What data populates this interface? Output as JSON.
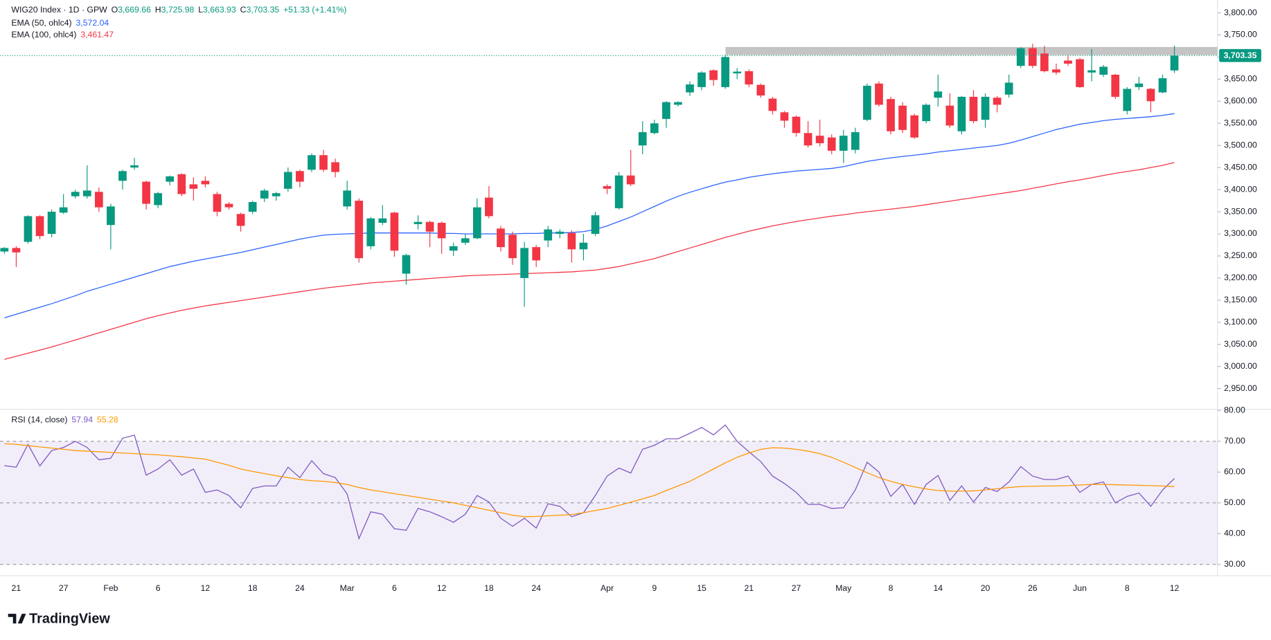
{
  "chart_data": [
    {
      "type": "candlestick",
      "title": "WIG20 Index · 1D · GPW",
      "ohlc_header": [
        {
          "label": "O",
          "value": "3,669.66"
        },
        {
          "label": "H",
          "value": "3,725.98"
        },
        {
          "label": "L",
          "value": "3,663.93"
        },
        {
          "label": "C",
          "value": "3,703.35"
        }
      ],
      "change": "+51.33 (+1.41%)",
      "close_label": "3,703.35",
      "up_color": "#089981",
      "down_color": "#f23645",
      "categories": [
        null,
        "21",
        null,
        null,
        null,
        "27",
        null,
        null,
        null,
        "Feb",
        null,
        null,
        null,
        "6",
        null,
        null,
        null,
        "12",
        null,
        null,
        null,
        "18",
        null,
        null,
        null,
        "24",
        null,
        null,
        null,
        "Mar",
        null,
        null,
        null,
        "6",
        null,
        null,
        null,
        "12",
        null,
        null,
        null,
        "18",
        null,
        null,
        null,
        "24",
        null,
        null,
        null,
        null,
        null,
        "Apr",
        null,
        null,
        null,
        "9",
        null,
        null,
        null,
        "15",
        null,
        null,
        null,
        "21",
        null,
        null,
        null,
        "27",
        null,
        null,
        null,
        "May",
        null,
        null,
        null,
        "8",
        null,
        null,
        null,
        "14",
        null,
        null,
        null,
        "20",
        null,
        null,
        null,
        "26",
        null,
        null,
        null,
        "Jun",
        null,
        null,
        null,
        "8",
        null,
        null,
        null,
        "12"
      ],
      "open": [
        3260,
        3268,
        3282,
        3340,
        3300,
        3348,
        3385,
        3385,
        3395,
        3320,
        3420,
        3450,
        3418,
        3365,
        3418,
        3435,
        3412,
        3420,
        3390,
        3368,
        3345,
        3350,
        3380,
        3385,
        3402,
        3442,
        3445,
        3478,
        3462,
        3362,
        3375,
        3272,
        3325,
        3348,
        3210,
        3322,
        3327,
        3325,
        3262,
        3280,
        3290,
        3382,
        3312,
        3298,
        3200,
        3270,
        3285,
        3300,
        3302,
        3265,
        3300,
        3408,
        3358,
        3432,
        3500,
        3528,
        3560,
        3592,
        3620,
        3632,
        3670,
        3632,
        3663,
        3668,
        3637,
        3606,
        3575,
        3565,
        3528,
        3522,
        3518,
        3488,
        3490,
        3558,
        3640,
        3605,
        3590,
        3568,
        3555,
        3608,
        3590,
        3532,
        3610,
        3558,
        3608,
        3615,
        3680,
        3720,
        3708,
        3672,
        3692,
        3695,
        3665,
        3660,
        3660,
        3578,
        3632,
        3628,
        3620,
        3669.66
      ],
      "high": [
        3270,
        3272,
        3342,
        3342,
        3355,
        3390,
        3400,
        3455,
        3405,
        3368,
        3445,
        3472,
        3420,
        3395,
        3432,
        3437,
        3428,
        3430,
        3395,
        3372,
        3348,
        3375,
        3402,
        3395,
        3450,
        3445,
        3482,
        3490,
        3470,
        3420,
        3380,
        3338,
        3365,
        3350,
        3255,
        3342,
        3330,
        3328,
        3280,
        3300,
        3380,
        3408,
        3318,
        3305,
        3282,
        3275,
        3318,
        3310,
        3308,
        3300,
        3350,
        3412,
        3440,
        3490,
        3555,
        3558,
        3600,
        3600,
        3645,
        3668,
        3672,
        3705,
        3675,
        3672,
        3640,
        3610,
        3578,
        3568,
        3555,
        3558,
        3525,
        3535,
        3540,
        3640,
        3645,
        3610,
        3598,
        3572,
        3595,
        3660,
        3618,
        3612,
        3625,
        3618,
        3612,
        3660,
        3722,
        3730,
        3725,
        3685,
        3705,
        3698,
        3718,
        3682,
        3662,
        3632,
        3655,
        3630,
        3660,
        3725.98
      ],
      "low": [
        3255,
        3225,
        3278,
        3288,
        3292,
        3345,
        3380,
        3380,
        3350,
        3265,
        3400,
        3445,
        3355,
        3358,
        3410,
        3385,
        3375,
        3405,
        3340,
        3355,
        3305,
        3345,
        3372,
        3375,
        3395,
        3405,
        3440,
        3440,
        3428,
        3355,
        3235,
        3265,
        3320,
        3248,
        3185,
        3310,
        3270,
        3255,
        3250,
        3275,
        3288,
        3335,
        3260,
        3230,
        3135,
        3225,
        3270,
        3290,
        3235,
        3240,
        3295,
        3390,
        3355,
        3408,
        3480,
        3525,
        3540,
        3588,
        3612,
        3625,
        3635,
        3628,
        3650,
        3632,
        3608,
        3570,
        3540,
        3520,
        3495,
        3498,
        3480,
        3460,
        3482,
        3555,
        3588,
        3525,
        3528,
        3515,
        3550,
        3588,
        3540,
        3525,
        3550,
        3540,
        3575,
        3608,
        3675,
        3675,
        3665,
        3660,
        3680,
        3630,
        3645,
        3655,
        3605,
        3570,
        3625,
        3575,
        3618,
        3663.93
      ],
      "close": [
        3268,
        3258,
        3340,
        3295,
        3350,
        3360,
        3395,
        3398,
        3360,
        3362,
        3442,
        3455,
        3368,
        3392,
        3430,
        3390,
        3402,
        3412,
        3350,
        3360,
        3318,
        3372,
        3398,
        3392,
        3440,
        3418,
        3478,
        3445,
        3440,
        3398,
        3245,
        3335,
        3335,
        3262,
        3252,
        3327,
        3305,
        3290,
        3272,
        3290,
        3360,
        3340,
        3270,
        3245,
        3268,
        3240,
        3310,
        3305,
        3265,
        3280,
        3342,
        3402,
        3432,
        3412,
        3530,
        3550,
        3598,
        3598,
        3638,
        3665,
        3648,
        3700,
        3667,
        3638,
        3613,
        3578,
        3556,
        3528,
        3500,
        3505,
        3488,
        3522,
        3530,
        3635,
        3592,
        3532,
        3535,
        3518,
        3592,
        3622,
        3545,
        3610,
        3555,
        3610,
        3592,
        3642,
        3720,
        3680,
        3668,
        3665,
        3685,
        3632,
        3670,
        3678,
        3610,
        3628,
        3640,
        3600,
        3652,
        3703.35
      ],
      "series": [
        {
          "name": "EMA (50, ohlc4)",
          "legend_value": "3,572.04",
          "color": "#2962ff",
          "values": [
            3110,
            3118,
            3126,
            3134,
            3142,
            3151,
            3160,
            3170,
            3178,
            3186,
            3194,
            3202,
            3210,
            3218,
            3226,
            3232,
            3238,
            3243,
            3248,
            3253,
            3258,
            3264,
            3270,
            3276,
            3282,
            3288,
            3293,
            3297,
            3299,
            3300,
            3301,
            3302,
            3302,
            3302,
            3302,
            3302,
            3302,
            3301,
            3301,
            3300,
            3300,
            3300,
            3300,
            3300,
            3301,
            3301,
            3302,
            3302,
            3303,
            3305,
            3310,
            3318,
            3328,
            3338,
            3350,
            3362,
            3374,
            3385,
            3394,
            3402,
            3410,
            3417,
            3422,
            3428,
            3432,
            3436,
            3439,
            3442,
            3444,
            3446,
            3448,
            3452,
            3458,
            3464,
            3468,
            3472,
            3475,
            3478,
            3481,
            3485,
            3488,
            3491,
            3494,
            3497,
            3500,
            3505,
            3512,
            3520,
            3528,
            3536,
            3542,
            3548,
            3552,
            3556,
            3559,
            3561,
            3563,
            3565,
            3568,
            3572.04
          ]
        },
        {
          "name": "EMA (100, ohlc4)",
          "legend_value": "3,461.47",
          "color": "#f23645",
          "values": [
            3016,
            3023,
            3030,
            3037,
            3044,
            3052,
            3060,
            3068,
            3076,
            3084,
            3092,
            3100,
            3108,
            3115,
            3121,
            3127,
            3132,
            3137,
            3141,
            3145,
            3149,
            3153,
            3157,
            3161,
            3165,
            3169,
            3173,
            3177,
            3180,
            3183,
            3186,
            3189,
            3191,
            3193,
            3195,
            3197,
            3199,
            3201,
            3203,
            3205,
            3206,
            3207,
            3208,
            3209,
            3210,
            3211,
            3212,
            3213,
            3214,
            3216,
            3218,
            3222,
            3226,
            3232,
            3238,
            3244,
            3252,
            3260,
            3268,
            3276,
            3284,
            3292,
            3299,
            3306,
            3312,
            3318,
            3323,
            3328,
            3332,
            3336,
            3340,
            3343,
            3347,
            3350,
            3353,
            3356,
            3359,
            3362,
            3366,
            3370,
            3374,
            3378,
            3382,
            3386,
            3390,
            3394,
            3398,
            3403,
            3408,
            3413,
            3418,
            3422,
            3427,
            3432,
            3437,
            3441,
            3445,
            3450,
            3455,
            3461.47
          ]
        }
      ],
      "ylim": [
        2904,
        3829
      ],
      "yticks": [
        {
          "value": 2950,
          "label": "2,950.00"
        },
        {
          "value": 3000,
          "label": "3,000.00"
        },
        {
          "value": 3050,
          "label": "3,050.00"
        },
        {
          "value": 3100,
          "label": "3,100.00"
        },
        {
          "value": 3150,
          "label": "3,150.00"
        },
        {
          "value": 3200,
          "label": "3,200.00"
        },
        {
          "value": 3250,
          "label": "3,250.00"
        },
        {
          "value": 3300,
          "label": "3,300.00"
        },
        {
          "value": 3350,
          "label": "3,350.00"
        },
        {
          "value": 3400,
          "label": "3,400.00"
        },
        {
          "value": 3450,
          "label": "3,450.00"
        },
        {
          "value": 3500,
          "label": "3,500.00"
        },
        {
          "value": 3550,
          "label": "3,550.00"
        },
        {
          "value": 3600,
          "label": "3,600.00"
        },
        {
          "value": 3650,
          "label": "3,650.00"
        },
        {
          "value": 3700,
          "label": "3,700.00"
        },
        {
          "value": 3750,
          "label": "3,750.00"
        },
        {
          "value": 3800,
          "label": "3,800.00"
        }
      ]
    },
    {
      "type": "line",
      "title": "RSI (14, close)",
      "band_color": "#7e57c2",
      "levels": [
        70,
        50,
        30
      ],
      "series": [
        {
          "legend_value": "57.94",
          "color": "#7e57c2",
          "values": [
            62.1,
            61.6,
            69,
            62,
            67,
            68,
            70,
            68,
            64,
            64.5,
            71,
            72,
            59,
            61,
            64,
            59,
            61,
            53.4,
            54.2,
            52.4,
            48.4,
            54.7,
            55.5,
            55.5,
            61.6,
            58.2,
            63.7,
            59.5,
            58.2,
            52.9,
            38.4,
            47.1,
            46.3,
            41.6,
            41.1,
            48.2,
            47.1,
            45.5,
            43.7,
            46.3,
            52.4,
            50.3,
            45,
            42.4,
            45,
            41.8,
            49.7,
            48.9,
            45.5,
            46.8,
            52.4,
            58.7,
            61.3,
            59.7,
            67.4,
            68.7,
            70.8,
            70.8,
            72.6,
            74.5,
            72.1,
            75.3,
            70,
            66.6,
            63.4,
            58.7,
            56.3,
            53.4,
            49.5,
            49.5,
            48.2,
            48.4,
            54.2,
            63.2,
            60,
            52.1,
            56,
            49.5,
            56,
            58.9,
            50.8,
            55.5,
            50.3,
            55,
            53.7,
            56.8,
            61.8,
            58.7,
            57.6,
            57.6,
            58.7,
            53.4,
            56,
            56.8,
            50,
            52.1,
            53.2,
            48.9,
            54.2,
            57.94
          ]
        },
        {
          "legend_value": "55.28",
          "color": "#ff9800",
          "values": [
            69.2,
            69,
            68.6,
            68.2,
            67.8,
            67.4,
            67,
            66.8,
            66.6,
            66.4,
            66.2,
            66,
            65.8,
            65.6,
            65.3,
            65,
            64.6,
            64.2,
            63.2,
            62.2,
            61,
            60.2,
            59.5,
            58.8,
            58.2,
            57.6,
            57.2,
            57,
            56.6,
            56,
            55,
            54.2,
            53.6,
            53,
            52.4,
            51.8,
            51.2,
            50.6,
            50,
            49.2,
            48.4,
            47.6,
            46.8,
            46,
            45.5,
            45.6,
            45.8,
            46,
            46.2,
            46.8,
            47.5,
            48.2,
            49.2,
            50.2,
            51.3,
            52.4,
            54,
            55.5,
            57,
            59,
            61,
            63,
            64.8,
            66.2,
            67.4,
            67.9,
            67.8,
            67.4,
            66.8,
            66,
            64.8,
            63.2,
            61.5,
            59.8,
            58.2,
            57,
            56,
            55.2,
            54.5,
            54,
            53.8,
            53.8,
            53.9,
            54.2,
            54.6,
            55,
            55.3,
            55.4,
            55.5,
            55.5,
            55.6,
            55.8,
            56,
            56,
            55.9,
            55.8,
            55.7,
            55.6,
            55.5,
            55.28
          ]
        }
      ],
      "ylim": [
        26.6,
        80
      ],
      "yticks": [
        {
          "value": 30,
          "label": "30.00"
        },
        {
          "value": 40,
          "label": "40.00"
        },
        {
          "value": 50,
          "label": "50.00"
        },
        {
          "value": 60,
          "label": "60.00"
        },
        {
          "value": 70,
          "label": "70.00"
        },
        {
          "value": 80,
          "label": "80.00"
        }
      ]
    }
  ],
  "brand": "TradingView"
}
